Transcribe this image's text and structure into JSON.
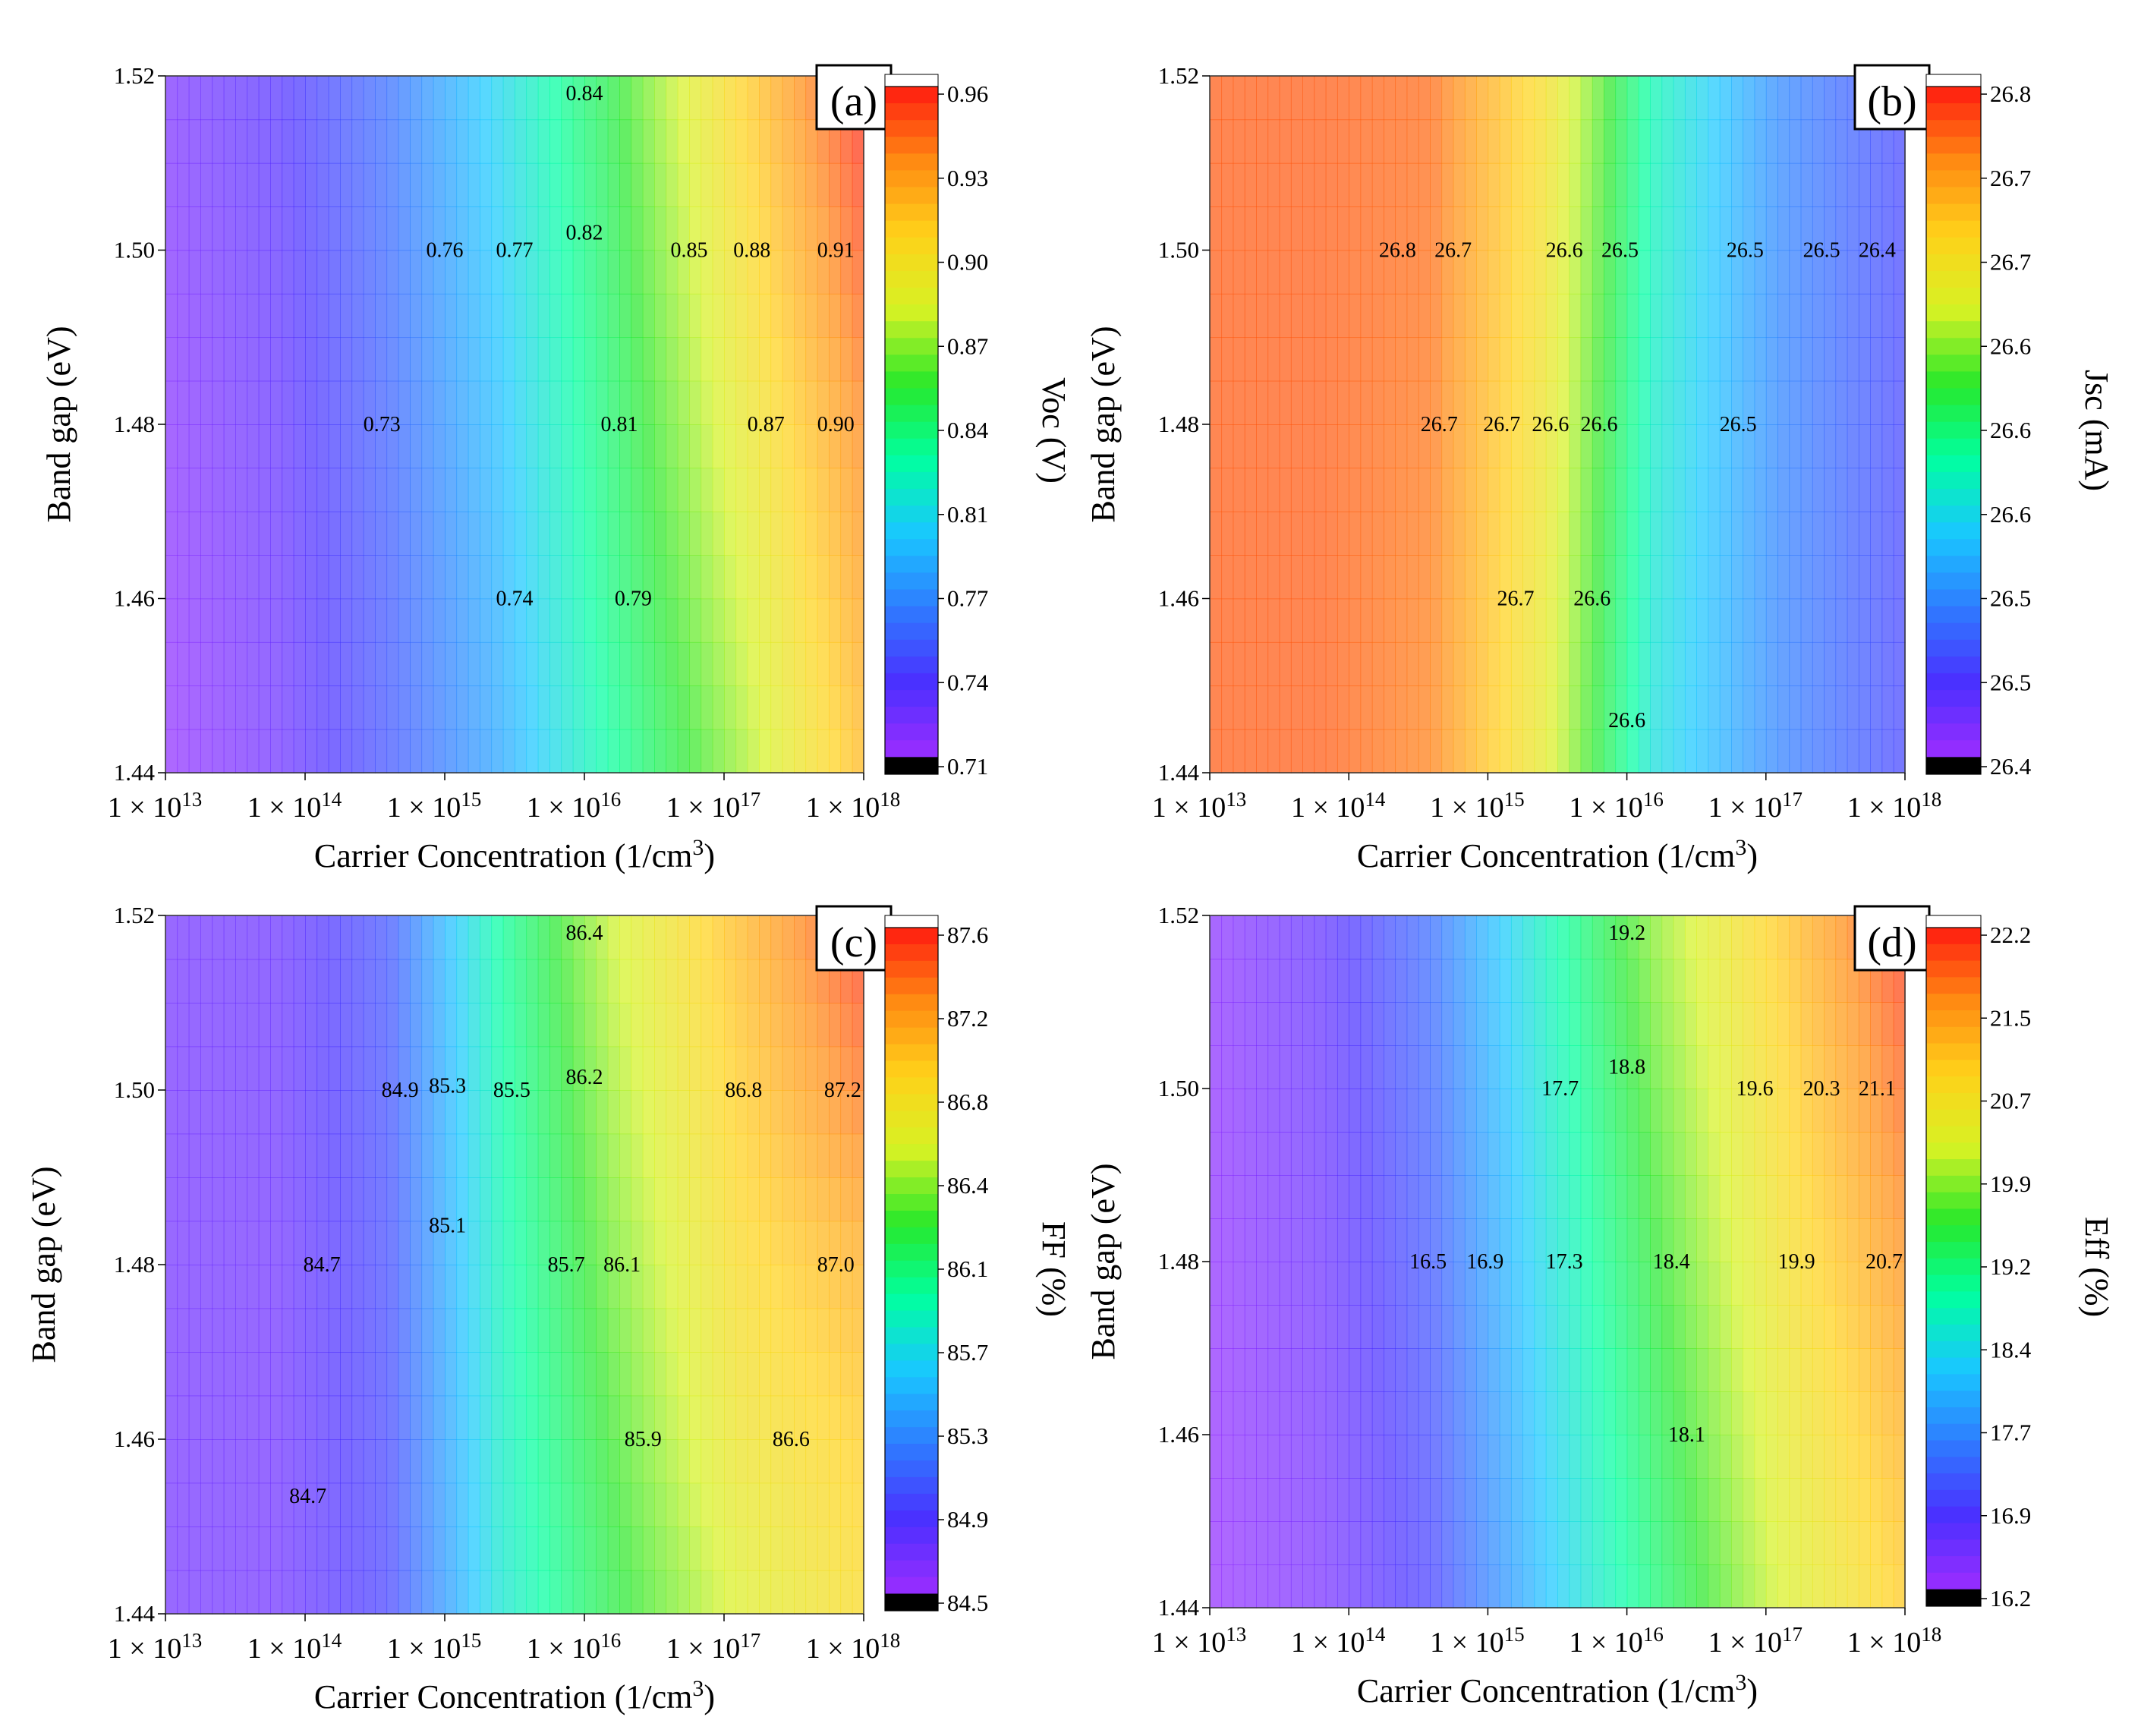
{
  "figure": {
    "x_ticks": [
      "1 × 10",
      "1 × 10",
      "1 × 10",
      "1 × 10",
      "1 × 10",
      "1 × 10"
    ],
    "x_tick_exponents": [
      "13",
      "14",
      "15",
      "16",
      "17",
      "18"
    ],
    "y_ticks": [
      "1.52",
      "1.50",
      "1.48",
      "1.46",
      "1.44"
    ]
  },
  "chart_data": [
    {
      "type": "heatmap",
      "panel_label": "(a)",
      "title": "",
      "xlabel": "Carrier Concentration (1/cm",
      "xlabel_sup": "3",
      "xlabel_end": ")",
      "ylabel": "Band gap (eV)",
      "colorbar_label": "Voc (V)",
      "x_log10_range": [
        13,
        18
      ],
      "ylim": [
        1.44,
        1.52
      ],
      "colorbar_ticks": [
        "0.96",
        "0.93",
        "0.90",
        "0.87",
        "0.84",
        "0.81",
        "0.77",
        "0.74",
        "0.71"
      ],
      "value_range": [
        0.71,
        0.96
      ],
      "colormap": [
        "#000000",
        "#9b2dff",
        "#4a30ff",
        "#2f7bff",
        "#19c8ff",
        "#00ffa0",
        "#29e82a",
        "#d6f224",
        "#ffd21a",
        "#ff8a12",
        "#ff1a10"
      ],
      "grid_values_rows_y": [
        1.52,
        1.5,
        1.48,
        1.46,
        1.44
      ],
      "grid_values": [
        [
          0.722,
          0.735,
          0.76,
          0.8,
          0.845,
          0.905,
          0.96
        ],
        [
          0.72,
          0.732,
          0.758,
          0.795,
          0.84,
          0.895,
          0.948
        ],
        [
          0.718,
          0.73,
          0.755,
          0.79,
          0.835,
          0.885,
          0.935
        ],
        [
          0.716,
          0.728,
          0.752,
          0.785,
          0.83,
          0.875,
          0.925
        ],
        [
          0.714,
          0.726,
          0.75,
          0.78,
          0.822,
          0.865,
          0.915
        ]
      ],
      "grid_x_log10": [
        13,
        13.8,
        14.6,
        15.4,
        16.2,
        17.1,
        18
      ],
      "contour_labels": [
        {
          "text": "0.84",
          "x": 16.0,
          "y": 1.518
        },
        {
          "text": "0.76",
          "x": 15.0,
          "y": 1.5
        },
        {
          "text": "0.77",
          "x": 15.5,
          "y": 1.5
        },
        {
          "text": "0.82",
          "x": 16.0,
          "y": 1.502
        },
        {
          "text": "0.85",
          "x": 16.75,
          "y": 1.5
        },
        {
          "text": "0.88",
          "x": 17.2,
          "y": 1.5
        },
        {
          "text": "0.91",
          "x": 17.8,
          "y": 1.5
        },
        {
          "text": "0.73",
          "x": 14.55,
          "y": 1.48
        },
        {
          "text": "0.81",
          "x": 16.25,
          "y": 1.48
        },
        {
          "text": "0.87",
          "x": 17.3,
          "y": 1.48
        },
        {
          "text": "0.90",
          "x": 17.8,
          "y": 1.48
        },
        {
          "text": "0.74",
          "x": 15.5,
          "y": 1.46
        },
        {
          "text": "0.79",
          "x": 16.35,
          "y": 1.46
        }
      ]
    },
    {
      "type": "heatmap",
      "panel_label": "(b)",
      "title": "",
      "xlabel": "Carrier Concentration (1/cm",
      "xlabel_sup": "3",
      "xlabel_end": ")",
      "ylabel": "Band gap (eV)",
      "colorbar_label": "Jsc (mA)",
      "x_log10_range": [
        13,
        18
      ],
      "ylim": [
        1.44,
        1.52
      ],
      "colorbar_ticks": [
        "26.8",
        "26.7",
        "26.7",
        "26.6",
        "26.6",
        "26.6",
        "26.5",
        "26.5",
        "26.4"
      ],
      "value_range": [
        26.4,
        26.8
      ],
      "colormap": [
        "#000000",
        "#9b2dff",
        "#4a30ff",
        "#2f7bff",
        "#19c8ff",
        "#00ffa0",
        "#29e82a",
        "#d6f224",
        "#ffd21a",
        "#ff8a12",
        "#ff1a10"
      ],
      "grid_values_rows_y": [
        1.52,
        1.5,
        1.48,
        1.46,
        1.44
      ],
      "grid_values": [
        [
          26.775,
          26.775,
          26.77,
          26.7,
          26.57,
          26.495,
          26.455
        ],
        [
          26.775,
          26.775,
          26.768,
          26.695,
          26.565,
          26.494,
          26.455
        ],
        [
          26.775,
          26.775,
          26.765,
          26.69,
          26.56,
          26.493,
          26.455
        ],
        [
          26.775,
          26.775,
          26.762,
          26.685,
          26.555,
          26.492,
          26.455
        ],
        [
          26.775,
          26.775,
          26.76,
          26.68,
          26.55,
          26.491,
          26.455
        ]
      ],
      "grid_x_log10": [
        13,
        13.8,
        14.6,
        15.4,
        16.2,
        17.1,
        18
      ],
      "contour_labels": [
        {
          "text": "26.8",
          "x": 14.35,
          "y": 1.5
        },
        {
          "text": "26.7",
          "x": 14.75,
          "y": 1.5
        },
        {
          "text": "26.6",
          "x": 15.55,
          "y": 1.5
        },
        {
          "text": "26.5",
          "x": 15.95,
          "y": 1.5
        },
        {
          "text": "26.5",
          "x": 16.85,
          "y": 1.5
        },
        {
          "text": "26.5",
          "x": 17.4,
          "y": 1.5
        },
        {
          "text": "26.4",
          "x": 17.8,
          "y": 1.5
        },
        {
          "text": "26.7",
          "x": 14.65,
          "y": 1.48
        },
        {
          "text": "26.7",
          "x": 15.1,
          "y": 1.48
        },
        {
          "text": "26.6",
          "x": 15.45,
          "y": 1.48
        },
        {
          "text": "26.6",
          "x": 15.8,
          "y": 1.48
        },
        {
          "text": "26.5",
          "x": 16.8,
          "y": 1.48
        },
        {
          "text": "26.7",
          "x": 15.2,
          "y": 1.46
        },
        {
          "text": "26.6",
          "x": 15.75,
          "y": 1.46
        },
        {
          "text": "26.6",
          "x": 16.0,
          "y": 1.446
        }
      ]
    },
    {
      "type": "heatmap",
      "panel_label": "(c)",
      "title": "",
      "xlabel": "Carrier Concentration (1/cm",
      "xlabel_sup": "3",
      "xlabel_end": ")",
      "ylabel": "Band gap (eV)",
      "colorbar_label": "FF (%)",
      "x_log10_range": [
        13,
        18
      ],
      "ylim": [
        1.44,
        1.52
      ],
      "colorbar_ticks": [
        "87.6",
        "87.2",
        "86.8",
        "86.4",
        "86.1",
        "85.7",
        "85.3",
        "84.9",
        "84.5"
      ],
      "value_range": [
        84.5,
        87.6
      ],
      "colormap": [
        "#000000",
        "#9b2dff",
        "#4a30ff",
        "#2f7bff",
        "#19c8ff",
        "#00ffa0",
        "#29e82a",
        "#d6f224",
        "#ffd21a",
        "#ff8a12",
        "#ff1a10"
      ],
      "grid_values_rows_y": [
        1.52,
        1.5,
        1.48,
        1.46,
        1.44
      ],
      "grid_values": [
        [
          84.68,
          84.72,
          85.0,
          85.9,
          86.55,
          87.05,
          87.55
        ],
        [
          84.68,
          84.72,
          84.98,
          85.85,
          86.45,
          86.95,
          87.35
        ],
        [
          84.68,
          84.7,
          84.96,
          85.8,
          86.35,
          86.85,
          87.1
        ],
        [
          84.68,
          84.7,
          84.94,
          85.75,
          86.25,
          86.75,
          86.95
        ],
        [
          84.68,
          84.7,
          84.92,
          85.7,
          86.15,
          86.6,
          86.85
        ]
      ],
      "grid_x_log10": [
        13,
        13.8,
        14.6,
        15.4,
        16.2,
        17.1,
        18
      ],
      "contour_labels": [
        {
          "text": "86.4",
          "x": 16.0,
          "y": 1.518
        },
        {
          "text": "84.9",
          "x": 14.68,
          "y": 1.5
        },
        {
          "text": "85.3",
          "x": 15.02,
          "y": 1.5005
        },
        {
          "text": "85.5",
          "x": 15.48,
          "y": 1.5
        },
        {
          "text": "86.2",
          "x": 16.0,
          "y": 1.5015
        },
        {
          "text": "86.8",
          "x": 17.14,
          "y": 1.5
        },
        {
          "text": "87.2",
          "x": 17.85,
          "y": 1.5
        },
        {
          "text": "85.1",
          "x": 15.02,
          "y": 1.4845
        },
        {
          "text": "84.7",
          "x": 14.12,
          "y": 1.48
        },
        {
          "text": "85.7",
          "x": 15.87,
          "y": 1.48
        },
        {
          "text": "86.1",
          "x": 16.27,
          "y": 1.48
        },
        {
          "text": "87.0",
          "x": 17.8,
          "y": 1.48
        },
        {
          "text": "85.9",
          "x": 16.42,
          "y": 1.46
        },
        {
          "text": "86.6",
          "x": 17.48,
          "y": 1.46
        },
        {
          "text": "84.7",
          "x": 14.02,
          "y": 1.4535
        }
      ]
    },
    {
      "type": "heatmap",
      "panel_label": "(d)",
      "title": "",
      "xlabel": "Carrier Concentration (1/cm",
      "xlabel_sup": "3",
      "xlabel_end": ")",
      "ylabel": "Band gap (eV)",
      "colorbar_label": "Eff (%)",
      "x_log10_range": [
        13,
        18
      ],
      "ylim": [
        1.44,
        1.52
      ],
      "colorbar_ticks": [
        "22.2",
        "21.5",
        "20.7",
        "19.9",
        "19.2",
        "18.4",
        "17.7",
        "16.9",
        "16.2"
      ],
      "value_range": [
        16.2,
        22.2
      ],
      "colormap": [
        "#000000",
        "#9b2dff",
        "#4a30ff",
        "#2f7bff",
        "#19c8ff",
        "#00ffa0",
        "#29e82a",
        "#d6f224",
        "#ffd21a",
        "#ff8a12",
        "#ff1a10"
      ],
      "grid_values_rows_y": [
        1.52,
        1.5,
        1.48,
        1.46,
        1.44
      ],
      "grid_values": [
        [
          16.35,
          16.7,
          17.4,
          18.7,
          19.9,
          21.0,
          22.1
        ],
        [
          16.33,
          16.65,
          17.3,
          18.55,
          19.7,
          20.8,
          21.8
        ],
        [
          16.31,
          16.6,
          17.2,
          18.4,
          19.5,
          20.6,
          21.5
        ],
        [
          16.29,
          16.55,
          17.1,
          18.25,
          19.3,
          20.4,
          21.2
        ],
        [
          16.27,
          16.5,
          17.0,
          18.1,
          19.1,
          20.2,
          20.95
        ]
      ],
      "grid_x_log10": [
        13,
        13.8,
        14.6,
        15.4,
        16.2,
        17.1,
        18
      ],
      "contour_labels": [
        {
          "text": "19.2",
          "x": 16.0,
          "y": 1.518
        },
        {
          "text": "17.7",
          "x": 15.52,
          "y": 1.5
        },
        {
          "text": "18.8",
          "x": 16.0,
          "y": 1.5025
        },
        {
          "text": "19.6",
          "x": 16.92,
          "y": 1.5
        },
        {
          "text": "20.3",
          "x": 17.4,
          "y": 1.5
        },
        {
          "text": "21.1",
          "x": 17.8,
          "y": 1.5
        },
        {
          "text": "16.5",
          "x": 14.57,
          "y": 1.48
        },
        {
          "text": "16.9",
          "x": 14.98,
          "y": 1.48
        },
        {
          "text": "17.3",
          "x": 15.55,
          "y": 1.48
        },
        {
          "text": "18.4",
          "x": 16.32,
          "y": 1.48
        },
        {
          "text": "19.9",
          "x": 17.22,
          "y": 1.48
        },
        {
          "text": "20.7",
          "x": 17.85,
          "y": 1.48
        },
        {
          "text": "18.1",
          "x": 16.43,
          "y": 1.46
        }
      ]
    }
  ]
}
